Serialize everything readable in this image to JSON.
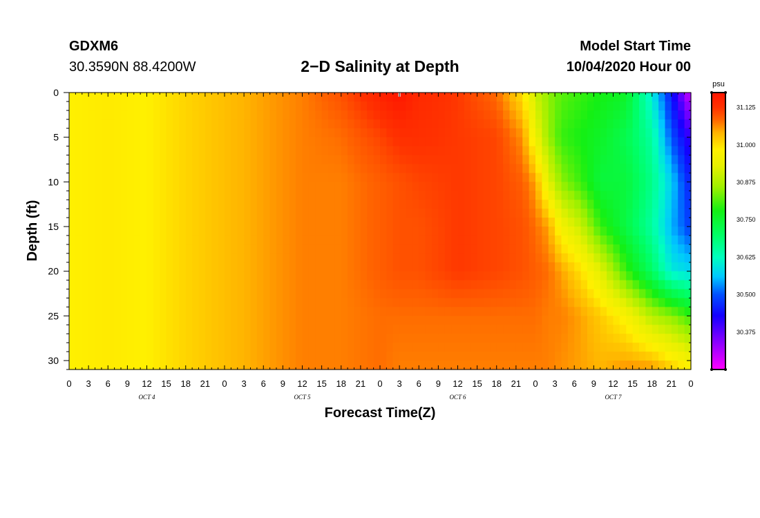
{
  "header": {
    "station": "GDXM6",
    "coords": "30.3590N 88.4200W",
    "title": "2−D Salinity at Depth",
    "model_start_label": "Model Start Time",
    "model_start_value": "10/04/2020 Hour 00"
  },
  "chart_data": {
    "type": "heatmap",
    "title": "2−D Salinity at Depth",
    "xlabel": "Forecast Time(Z)",
    "ylabel": "Depth (ft)",
    "x_tick_labels": [
      "0",
      "3",
      "6",
      "9",
      "12",
      "15",
      "18",
      "21",
      "0",
      "3",
      "6",
      "9",
      "12",
      "15",
      "18",
      "21",
      "0",
      "3",
      "6",
      "9",
      "12",
      "15",
      "18",
      "21",
      "0",
      "3",
      "6",
      "9",
      "12",
      "15",
      "18",
      "21",
      "0"
    ],
    "x_range_hours": [
      0,
      96
    ],
    "date_labels": [
      {
        "text": "OCT 4",
        "hour": 12
      },
      {
        "text": "OCT 5",
        "hour": 36
      },
      {
        "text": "OCT 6",
        "hour": 60
      },
      {
        "text": "OCT 7",
        "hour": 84
      }
    ],
    "y_tick_labels": [
      "0",
      "5",
      "10",
      "15",
      "20",
      "25",
      "30"
    ],
    "y_range_ft": [
      0,
      31
    ],
    "colorbar": {
      "unit": "psu",
      "range": [
        30.25,
        31.175
      ],
      "tick_values": [
        31.125,
        31.0,
        30.875,
        30.75,
        30.625,
        30.5,
        30.375
      ],
      "tick_labels": [
        "31.125",
        "31.000",
        "30.875",
        "30.750",
        "30.625",
        "30.500",
        "30.375"
      ],
      "colors": [
        {
          "v": 30.25,
          "c": "#ff00ff"
        },
        {
          "v": 30.34,
          "c": "#8c00ff"
        },
        {
          "v": 30.43,
          "c": "#1400ff"
        },
        {
          "v": 30.5,
          "c": "#0050ff"
        },
        {
          "v": 30.56,
          "c": "#00c8ff"
        },
        {
          "v": 30.625,
          "c": "#00ffbe"
        },
        {
          "v": 30.7,
          "c": "#00ff64"
        },
        {
          "v": 30.78,
          "c": "#14f014"
        },
        {
          "v": 30.86,
          "c": "#a0f000"
        },
        {
          "v": 30.93,
          "c": "#e6f000"
        },
        {
          "v": 30.985,
          "c": "#fff000"
        },
        {
          "v": 31.04,
          "c": "#ffb400"
        },
        {
          "v": 31.085,
          "c": "#ff6400"
        },
        {
          "v": 31.125,
          "c": "#ff3200"
        },
        {
          "v": 31.175,
          "c": "#ff1400"
        }
      ]
    },
    "depth_levels_ft": [
      0,
      5,
      10,
      15,
      20,
      25,
      31
    ],
    "sample_hours": [
      0,
      6,
      12,
      18,
      24,
      30,
      36,
      42,
      48,
      51,
      54,
      60,
      66,
      70,
      72,
      74,
      76,
      79,
      82,
      86,
      90,
      93,
      96
    ],
    "salinity_psu": [
      [
        30.985,
        30.985,
        30.985,
        30.985,
        30.985,
        30.985,
        30.985
      ],
      [
        30.99,
        30.99,
        30.99,
        30.99,
        30.99,
        30.99,
        30.99
      ],
      [
        30.985,
        30.985,
        30.985,
        30.985,
        30.985,
        30.985,
        30.985
      ],
      [
        31.01,
        31.01,
        31.01,
        31.01,
        31.01,
        31.01,
        31.01
      ],
      [
        31.03,
        31.03,
        31.03,
        31.03,
        31.03,
        31.03,
        31.03
      ],
      [
        31.05,
        31.05,
        31.05,
        31.05,
        31.05,
        31.05,
        31.05
      ],
      [
        31.07,
        31.07,
        31.07,
        31.07,
        31.07,
        31.07,
        31.07
      ],
      [
        31.1,
        31.08,
        31.07,
        31.07,
        31.07,
        31.07,
        31.07
      ],
      [
        31.15,
        31.11,
        31.09,
        31.09,
        31.09,
        31.08,
        31.08
      ],
      [
        31.17,
        31.13,
        31.1,
        31.1,
        31.1,
        31.08,
        31.07
      ],
      [
        31.14,
        31.13,
        31.11,
        31.1,
        31.1,
        31.08,
        31.07
      ],
      [
        31.12,
        31.12,
        31.12,
        31.12,
        31.12,
        31.08,
        31.07
      ],
      [
        31.08,
        31.11,
        31.11,
        31.11,
        31.11,
        31.08,
        31.07
      ],
      [
        31.0,
        31.06,
        31.09,
        31.1,
        31.1,
        31.08,
        31.07
      ],
      [
        30.9,
        30.95,
        31.05,
        31.08,
        31.09,
        31.08,
        31.07
      ],
      [
        30.85,
        30.86,
        30.93,
        31.05,
        31.08,
        31.07,
        31.07
      ],
      [
        30.82,
        30.8,
        30.85,
        30.96,
        31.05,
        31.07,
        31.06
      ],
      [
        30.8,
        30.78,
        30.8,
        30.9,
        31.0,
        31.05,
        31.05
      ],
      [
        30.78,
        30.76,
        30.74,
        30.8,
        30.93,
        31.02,
        31.04
      ],
      [
        30.76,
        30.72,
        30.74,
        30.73,
        30.8,
        30.97,
        31.06
      ],
      [
        30.6,
        30.65,
        30.67,
        30.65,
        30.7,
        30.88,
        31.06
      ],
      [
        30.45,
        30.5,
        30.57,
        30.55,
        30.6,
        30.85,
        31.02
      ],
      [
        30.28,
        30.4,
        30.45,
        30.48,
        30.58,
        30.8,
        30.99
      ]
    ]
  }
}
